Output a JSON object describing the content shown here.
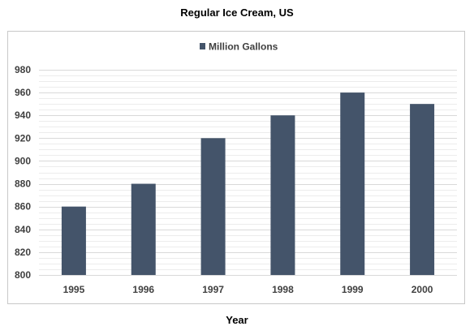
{
  "chart_data": {
    "type": "bar",
    "title": "Regular Ice Cream, US",
    "xlabel": "Year",
    "ylabel": "",
    "categories": [
      "1995",
      "1996",
      "1997",
      "1998",
      "1999",
      "2000"
    ],
    "series": [
      {
        "name": "Million Gallons",
        "values": [
          860,
          880,
          920,
          940,
          960,
          950
        ],
        "color": "#44546a"
      }
    ],
    "ylim": [
      800,
      980
    ],
    "y_ticks": [
      800,
      820,
      840,
      860,
      880,
      900,
      920,
      940,
      960,
      980
    ],
    "grid": true,
    "gridline_color": "#d9d9d9",
    "legend_position": "top"
  }
}
